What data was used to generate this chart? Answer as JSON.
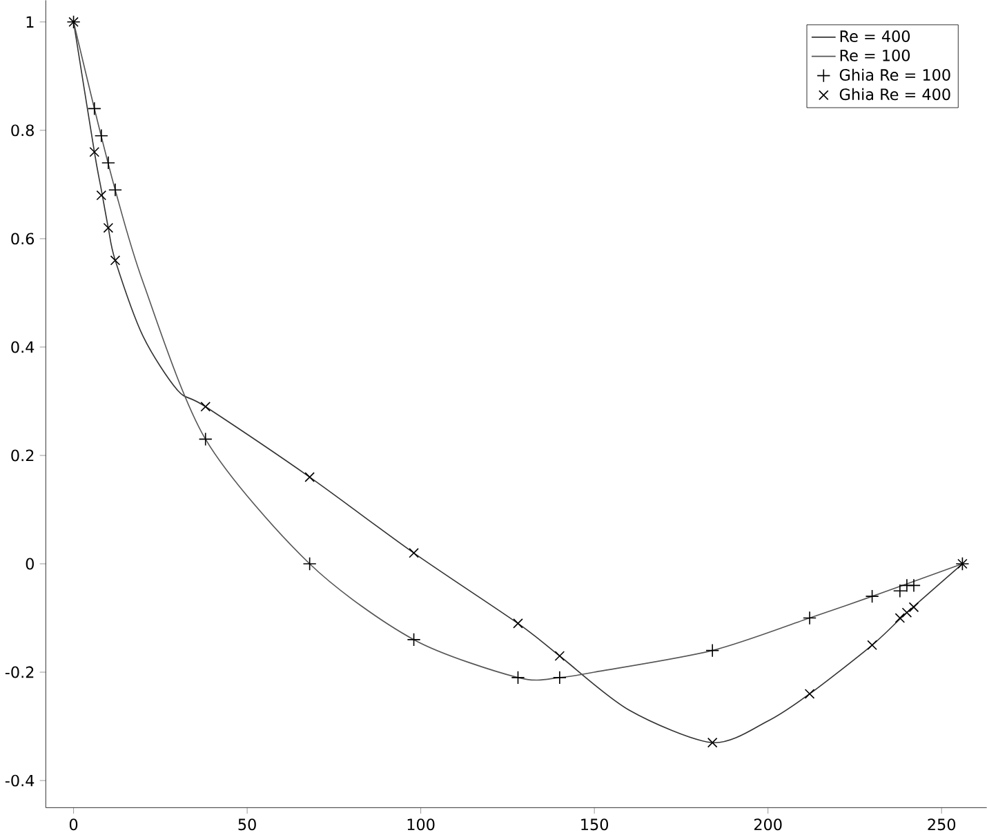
{
  "chart_data": {
    "type": "line",
    "xlim": [
      -8,
      263
    ],
    "ylim": [
      -0.45,
      1.04
    ],
    "xticks": [
      0,
      50,
      100,
      150,
      200,
      250
    ],
    "yticks": [
      {
        "value": -0.4,
        "label": "-0.4"
      },
      {
        "value": -0.2,
        "label": "-0.2"
      },
      0,
      {
        "value": 0.2,
        "label": "0.2"
      },
      {
        "value": 0.4,
        "label": "0.4"
      },
      {
        "value": 0.6,
        "label": "0.6"
      },
      {
        "value": 0.8,
        "label": "0.8"
      },
      1
    ],
    "grid": false,
    "legend": "top right",
    "series": [
      {
        "name": "Re = 400",
        "color": "#333333",
        "marker": "none",
        "x": [
          0,
          6,
          8,
          10,
          12,
          20,
          30,
          38,
          68,
          98,
          128,
          140,
          160,
          184,
          200,
          212,
          230,
          240,
          256
        ],
        "values": [
          1,
          0.76,
          0.69,
          0.62,
          0.56,
          0.42,
          0.32,
          0.29,
          0.16,
          0.02,
          -0.11,
          -0.17,
          -0.27,
          -0.33,
          -0.29,
          -0.24,
          -0.15,
          -0.09,
          0
        ]
      },
      {
        "name": "Re = 100",
        "color": "#555555",
        "marker": "none",
        "x": [
          0,
          6,
          12,
          20,
          38,
          68,
          98,
          128,
          140,
          150,
          184,
          212,
          230,
          256
        ],
        "values": [
          1,
          0.84,
          0.69,
          0.52,
          0.23,
          0.0,
          -0.14,
          -0.21,
          -0.21,
          -0.2,
          -0.16,
          -0.1,
          -0.06,
          0
        ]
      },
      {
        "name": "Ghia Re = 100",
        "type": "scatter",
        "color": "#000000",
        "marker": "plus",
        "x": [
          0,
          6,
          8,
          10,
          12,
          38,
          68,
          98,
          128,
          140,
          184,
          212,
          230,
          238,
          240,
          242,
          256
        ],
        "values": [
          1,
          0.84,
          0.79,
          0.74,
          0.69,
          0.23,
          0.0,
          -0.14,
          -0.21,
          -0.21,
          -0.16,
          -0.1,
          -0.06,
          -0.05,
          -0.04,
          -0.04,
          0
        ]
      },
      {
        "name": "Ghia Re = 400",
        "type": "scatter",
        "color": "#000000",
        "marker": "cross",
        "x": [
          0,
          6,
          8,
          10,
          12,
          38,
          68,
          98,
          128,
          140,
          184,
          212,
          230,
          238,
          240,
          242,
          256
        ],
        "values": [
          1,
          0.76,
          0.68,
          0.62,
          0.56,
          0.29,
          0.16,
          0.02,
          -0.11,
          -0.17,
          -0.33,
          -0.24,
          -0.15,
          -0.1,
          -0.09,
          -0.08,
          0
        ]
      }
    ]
  }
}
